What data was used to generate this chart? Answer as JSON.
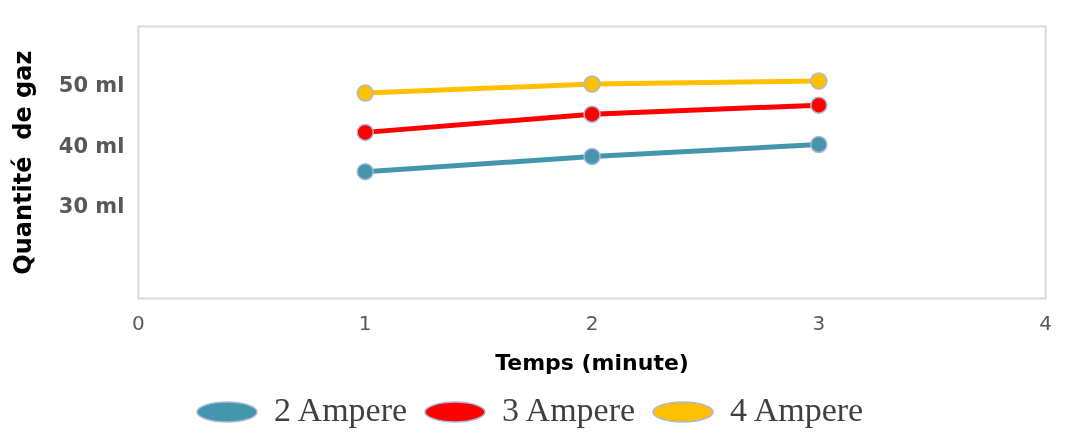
{
  "chart_data": {
    "type": "line",
    "xlabel": "Temps (minute)",
    "ylabel": "Quantité  de gaz",
    "x": [
      1,
      2,
      3
    ],
    "series": [
      {
        "name": "2 Ampere",
        "color": "#4496ad",
        "values": [
          36,
          38.5,
          40.5
        ]
      },
      {
        "name": "3 Ampere",
        "color": "#ff0000",
        "values": [
          42.5,
          45.5,
          47
        ]
      },
      {
        "name": "4 Ampere",
        "color": "#ffc000",
        "values": [
          49,
          50.5,
          51
        ]
      }
    ],
    "xlim": [
      0,
      4
    ],
    "xticks": [
      0,
      1,
      2,
      3,
      4
    ],
    "ylim": [
      15,
      60
    ],
    "yticks": [
      {
        "value": 30,
        "label": "30 ml"
      },
      {
        "value": 40,
        "label": "40 ml"
      },
      {
        "value": 50,
        "label": "50 ml"
      }
    ],
    "grid": false,
    "legend": "bottom",
    "marker": "circle",
    "line_style": "solid"
  }
}
